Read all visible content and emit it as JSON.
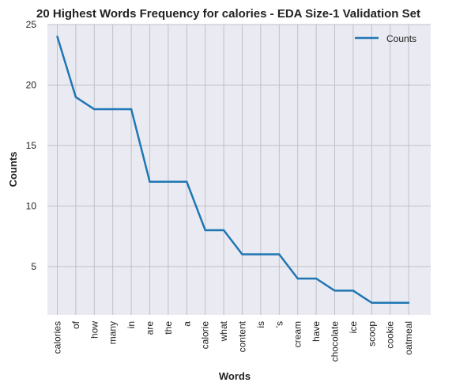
{
  "chart_data": {
    "type": "line",
    "title": "20 Highest Words Frequency for calories - EDA Size-1 Validation Set",
    "xlabel": "Words",
    "ylabel": "Counts",
    "categories": [
      "calories",
      "of",
      "how",
      "many",
      "in",
      "are",
      "the",
      "a",
      "calorie",
      "what",
      "content",
      "is",
      "'s",
      "cream",
      "have",
      "chocolate",
      "ice",
      "scoop",
      "cookie",
      "oatmeal"
    ],
    "series": [
      {
        "name": "Counts",
        "values": [
          24,
          19,
          18,
          18,
          18,
          12,
          12,
          12,
          8,
          8,
          6,
          6,
          6,
          4,
          4,
          3,
          3,
          2,
          2,
          2
        ]
      }
    ],
    "ylim": [
      1,
      25
    ],
    "yticks": [
      5,
      10,
      15,
      20,
      25
    ],
    "grid": true,
    "legend_position": "top-right",
    "colors": {
      "line": "#1f77b4",
      "background": "#eaeaf2",
      "grid": "#c0c0c8"
    }
  }
}
